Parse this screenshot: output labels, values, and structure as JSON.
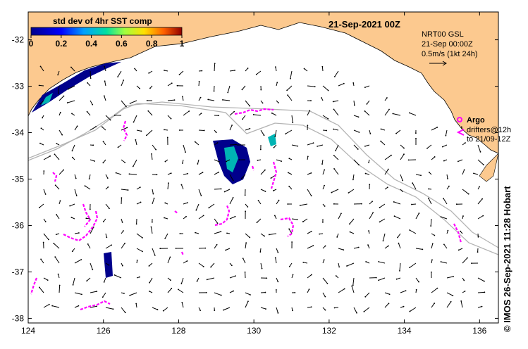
{
  "title": "21-Sep-2021 00Z",
  "colorbar": {
    "label": "std dev of 4hr SST comp",
    "ticks": [
      "0",
      "0.2",
      "0.4",
      "0.6",
      "0.8",
      "1"
    ],
    "min": 0,
    "max": 1
  },
  "legend": {
    "line1": "NRT00 GSL",
    "line2": "21-Sep 00:00Z",
    "line3": "0.5m/s (1kt 24h)",
    "argo_label": "Argo",
    "drifters_line1": "drifters@12h",
    "drifters_line2": "to 21/09-12Z"
  },
  "credit": "© IMOS 26-Sep-2021 11:28 Hobart",
  "axes": {
    "x_ticks": [
      "124",
      "126",
      "128",
      "130",
      "132",
      "134",
      "136"
    ],
    "y_ticks": [
      "-32",
      "-33",
      "-34",
      "-35",
      "-36",
      "-37",
      "-38"
    ],
    "lon_range": [
      124,
      136.5
    ],
    "lat_range": [
      -38.1,
      -31.4
    ]
  },
  "colors": {
    "land": "#fcc98f",
    "ocean": "#ffffff",
    "contour": "#b4b4b4",
    "drifter": "#ff00ff",
    "arrow": "#000000",
    "sst_low": "#00008c",
    "sst_mid": "#00b4b4"
  }
}
